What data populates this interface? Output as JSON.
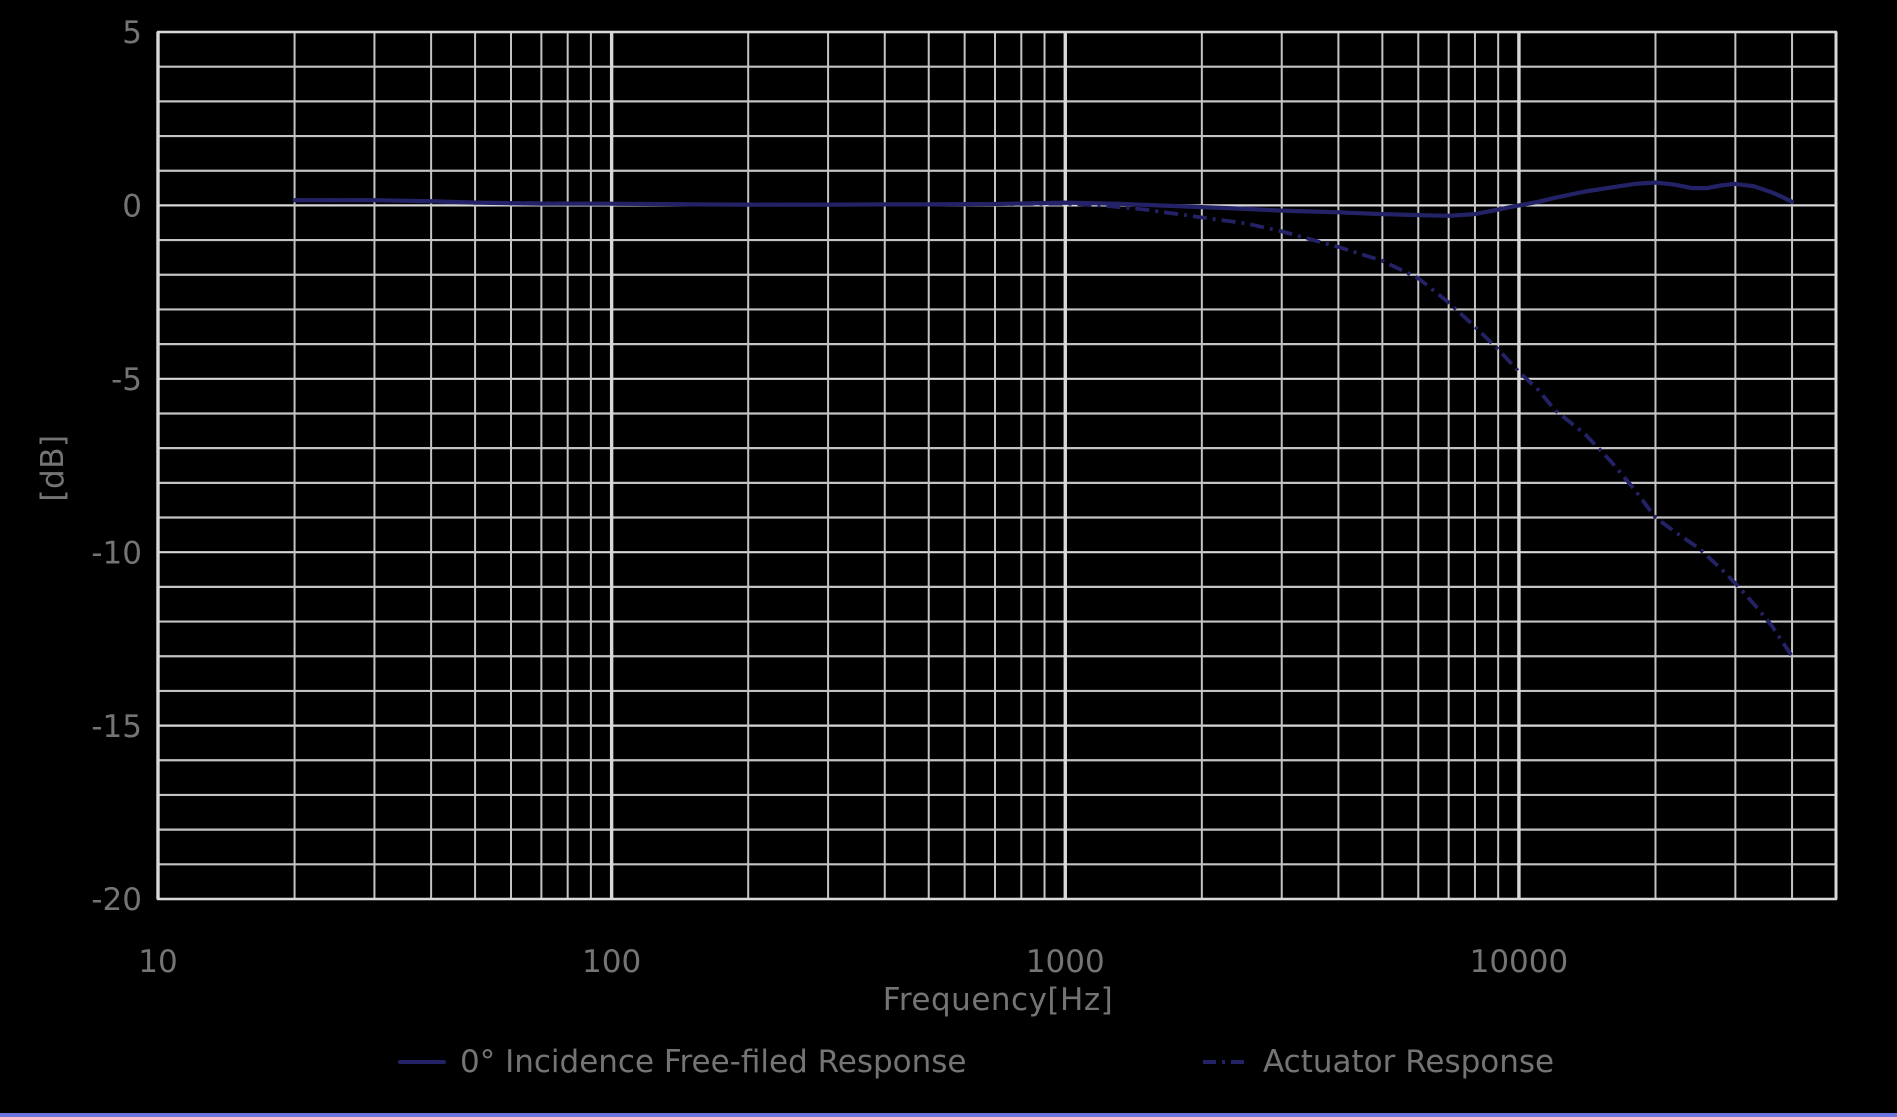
{
  "page": {
    "background": "#000000",
    "accent_bar_color": "#6a76dd",
    "text_color": "#747474"
  },
  "chart_data": {
    "type": "line",
    "title": "",
    "xlabel": "Frequency[Hz]",
    "ylabel": "[dB]",
    "x_scale": "log",
    "x_range": [
      10,
      50000
    ],
    "y_range": [
      -20,
      5
    ],
    "y_minor_step": 1,
    "y_major_step": 5,
    "grid": {
      "on": true,
      "minor_color": "#c3c3c3",
      "major_color": "#d8d8d8"
    },
    "line_color": "#242266",
    "legend_position": "bottom",
    "x_ticks": [
      {
        "value": 10,
        "label": "10"
      },
      {
        "value": 100,
        "label": "100"
      },
      {
        "value": 1000,
        "label": "1000"
      },
      {
        "value": 10000,
        "label": "10000"
      }
    ],
    "y_ticks": [
      {
        "value": 5,
        "label": "5"
      },
      {
        "value": 0,
        "label": "0"
      },
      {
        "value": -5,
        "label": "-5"
      },
      {
        "value": -10,
        "label": "-10"
      },
      {
        "value": -15,
        "label": "-15"
      },
      {
        "value": -20,
        "label": "-20"
      }
    ],
    "series": [
      {
        "name": "0° Incidence Free-filed Response",
        "style": "solid",
        "swatch": "solid-line",
        "color": "#242266",
        "points": [
          [
            20,
            0.15
          ],
          [
            25,
            0.15
          ],
          [
            30,
            0.15
          ],
          [
            40,
            0.12
          ],
          [
            50,
            0.08
          ],
          [
            70,
            0.05
          ],
          [
            100,
            0.05
          ],
          [
            150,
            0.03
          ],
          [
            200,
            0.02
          ],
          [
            300,
            0.02
          ],
          [
            400,
            0.03
          ],
          [
            500,
            0.03
          ],
          [
            700,
            0.04
          ],
          [
            1000,
            0.08
          ],
          [
            1300,
            0.05
          ],
          [
            1600,
            0.0
          ],
          [
            2000,
            -0.05
          ],
          [
            2500,
            -0.1
          ],
          [
            3000,
            -0.15
          ],
          [
            4000,
            -0.2
          ],
          [
            5000,
            -0.25
          ],
          [
            6000,
            -0.28
          ],
          [
            7000,
            -0.3
          ],
          [
            8000,
            -0.25
          ],
          [
            9000,
            -0.12
          ],
          [
            10000,
            0.0
          ],
          [
            11000,
            0.1
          ],
          [
            12000,
            0.22
          ],
          [
            14000,
            0.4
          ],
          [
            16000,
            0.52
          ],
          [
            18000,
            0.62
          ],
          [
            20000,
            0.66
          ],
          [
            22000,
            0.6
          ],
          [
            24000,
            0.5
          ],
          [
            26000,
            0.5
          ],
          [
            28000,
            0.58
          ],
          [
            30000,
            0.62
          ],
          [
            33000,
            0.55
          ],
          [
            36000,
            0.38
          ],
          [
            38000,
            0.25
          ],
          [
            40000,
            0.1
          ]
        ]
      },
      {
        "name": "Actuator Response",
        "style": "dashdot",
        "swatch": "dashdot-line",
        "color": "#242266",
        "points": [
          [
            20,
            0.15
          ],
          [
            30,
            0.15
          ],
          [
            50,
            0.08
          ],
          [
            100,
            0.05
          ],
          [
            200,
            0.02
          ],
          [
            300,
            0.02
          ],
          [
            500,
            0.03
          ],
          [
            700,
            0.04
          ],
          [
            1000,
            0.05
          ],
          [
            1200,
            0.0
          ],
          [
            1500,
            -0.12
          ],
          [
            2000,
            -0.35
          ],
          [
            2500,
            -0.52
          ],
          [
            3000,
            -0.75
          ],
          [
            4000,
            -1.2
          ],
          [
            5000,
            -1.6
          ],
          [
            6000,
            -2.1
          ],
          [
            7000,
            -2.8
          ],
          [
            8000,
            -3.5
          ],
          [
            9000,
            -4.15
          ],
          [
            10000,
            -4.8
          ],
          [
            11000,
            -5.3
          ],
          [
            12000,
            -5.9
          ],
          [
            14000,
            -6.6
          ],
          [
            16000,
            -7.4
          ],
          [
            18000,
            -8.2
          ],
          [
            20000,
            -9.0
          ],
          [
            22000,
            -9.4
          ],
          [
            25000,
            -9.9
          ],
          [
            28000,
            -10.5
          ],
          [
            30000,
            -10.9
          ],
          [
            33000,
            -11.5
          ],
          [
            36000,
            -12.1
          ],
          [
            40000,
            -13.0
          ]
        ]
      }
    ]
  }
}
